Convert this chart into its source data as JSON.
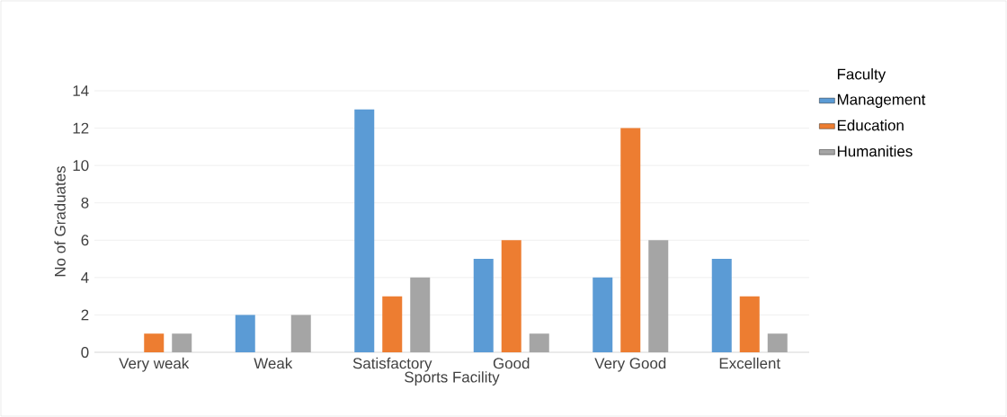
{
  "chart_data": {
    "type": "bar",
    "xlabel": "Sports Facility",
    "ylabel": "No of Graduates",
    "legend_title": "Faculty",
    "categories": [
      "Very weak",
      "Weak",
      "Satisfactory",
      "Good",
      "Very Good",
      "Excellent"
    ],
    "series": [
      {
        "name": "Management",
        "color": "#5b9bd5",
        "values": [
          0,
          2,
          13,
          5,
          4,
          5
        ]
      },
      {
        "name": "Education",
        "color": "#ed7d31",
        "values": [
          1,
          0,
          3,
          6,
          12,
          3
        ]
      },
      {
        "name": "Humanities",
        "color": "#a5a5a5",
        "values": [
          1,
          2,
          4,
          1,
          6,
          1
        ]
      }
    ],
    "ylim": [
      0,
      14
    ],
    "yticks": [
      0,
      2,
      4,
      6,
      8,
      10,
      12,
      14
    ],
    "grid": "y",
    "legend": "right"
  }
}
